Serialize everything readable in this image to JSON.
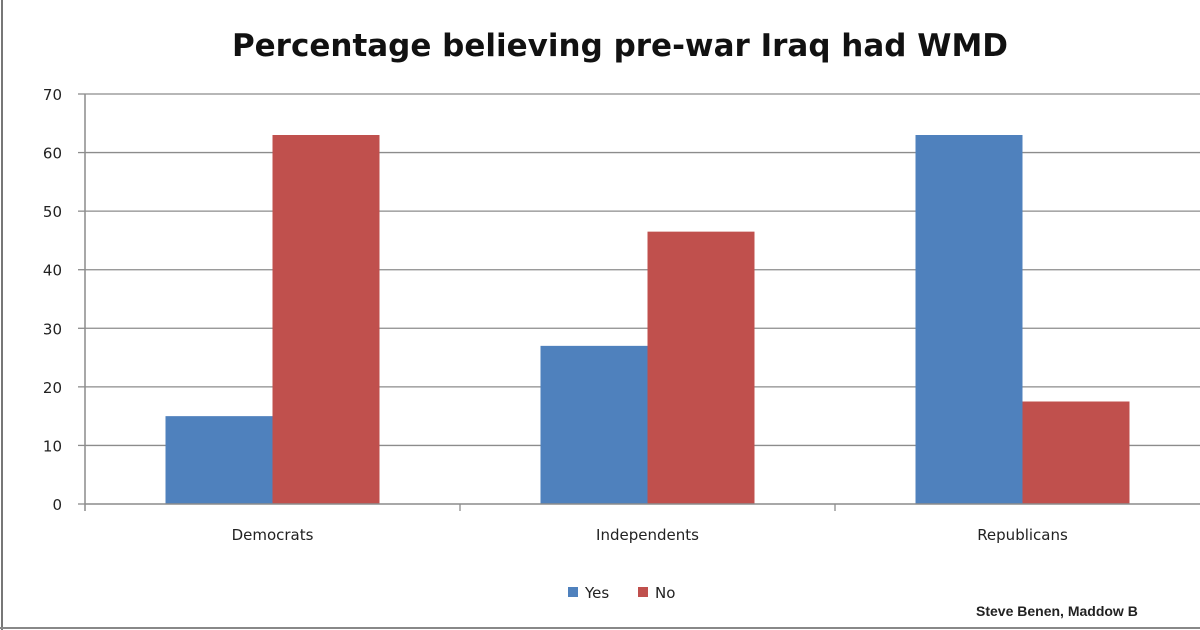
{
  "chart_data": {
    "type": "bar",
    "title": "Percentage believing pre-war Iraq had WMD",
    "categories": [
      "Democrats",
      "Independents",
      "Republicans"
    ],
    "series": [
      {
        "name": "Yes",
        "values": [
          15,
          27,
          63
        ],
        "color": "#4f81bd"
      },
      {
        "name": "No",
        "values": [
          63,
          46.5,
          17.5
        ],
        "color": "#c0504d"
      }
    ],
    "xlabel": "",
    "ylabel": "",
    "ylim": [
      0,
      70
    ],
    "yticks": [
      "0",
      "10",
      "20",
      "30",
      "40",
      "50",
      "60",
      "70"
    ],
    "grid": true,
    "legend": "bottom"
  },
  "credit": "Steve Benen, Maddow B"
}
